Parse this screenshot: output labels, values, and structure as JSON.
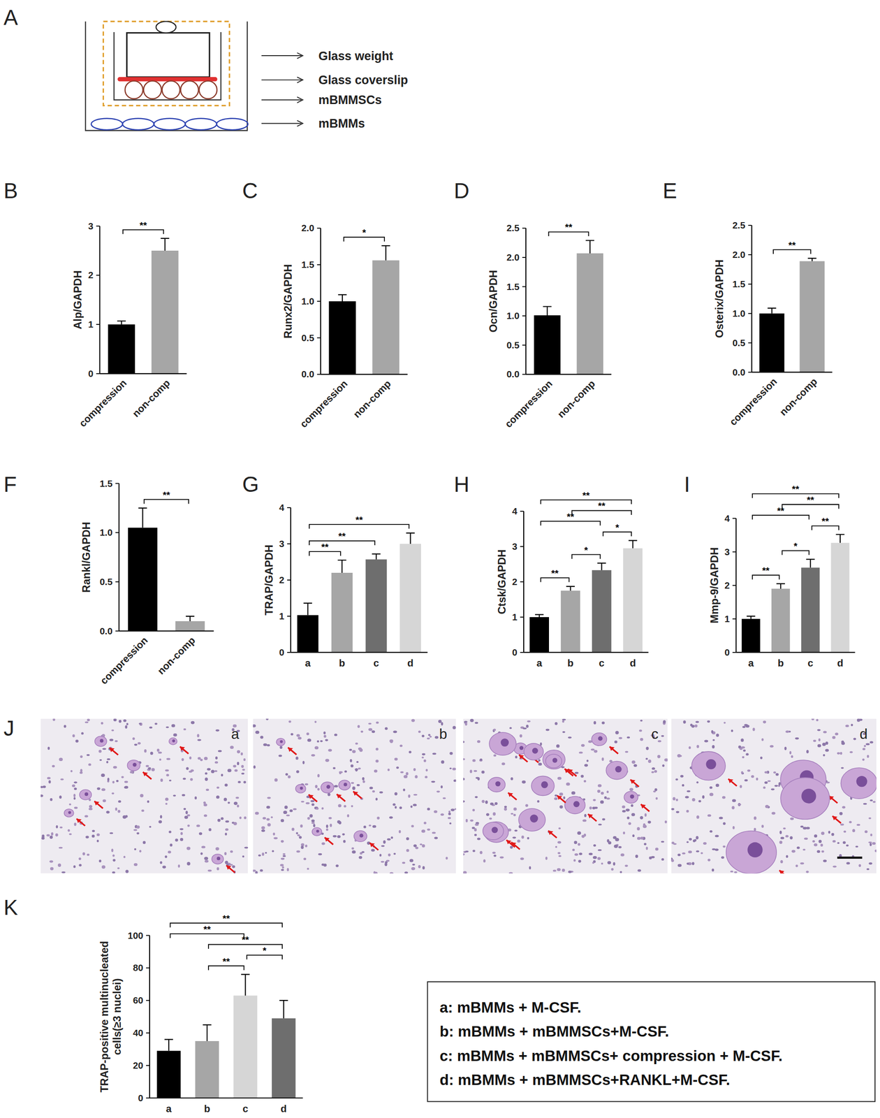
{
  "diagram": {
    "panel_label": "A",
    "labels": [
      "Glass weight",
      "Glass coverslip",
      "mBMMSCs",
      "mBMMs"
    ]
  },
  "chart_data": [
    {
      "type": "bar",
      "panel_label": "B",
      "ylabel": "Alp/GAPDH",
      "categories": [
        "compression",
        "non-comp"
      ],
      "values": [
        1.0,
        2.5
      ],
      "errors": [
        0.07,
        0.25
      ],
      "colors": [
        "#000000",
        "#a6a6a6"
      ],
      "ylim": [
        0,
        3
      ],
      "yticks": [
        0,
        1,
        2,
        3
      ],
      "comparisons": [
        {
          "groups": [
            0,
            1
          ],
          "label": "**"
        }
      ]
    },
    {
      "type": "bar",
      "panel_label": "C",
      "ylabel": "Runx2/GAPDH",
      "categories": [
        "compression",
        "non-comp"
      ],
      "values": [
        1.0,
        1.56
      ],
      "errors": [
        0.09,
        0.2
      ],
      "colors": [
        "#000000",
        "#a6a6a6"
      ],
      "ylim": [
        0,
        2
      ],
      "yticks": [
        {
          "value": 0,
          "label": "0.0"
        },
        0.5,
        {
          "value": 1,
          "label": "1.0"
        },
        1.5,
        {
          "value": 2,
          "label": "2.0"
        }
      ],
      "comparisons": [
        {
          "groups": [
            0,
            1
          ],
          "label": "*"
        }
      ]
    },
    {
      "type": "bar",
      "panel_label": "D",
      "ylabel": "Ocn/GAPDH",
      "categories": [
        "compression",
        "non-comp"
      ],
      "values": [
        1.01,
        2.07
      ],
      "errors": [
        0.15,
        0.22
      ],
      "colors": [
        "#000000",
        "#a6a6a6"
      ],
      "ylim": [
        0,
        2.5
      ],
      "yticks": [
        {
          "value": 0,
          "label": "0.0"
        },
        0.5,
        {
          "value": 1,
          "label": "1.0"
        },
        1.5,
        {
          "value": 2,
          "label": "2.0"
        },
        2.5
      ],
      "comparisons": [
        {
          "groups": [
            0,
            1
          ],
          "label": "**"
        }
      ]
    },
    {
      "type": "bar",
      "panel_label": "E",
      "ylabel": "Osterix/GAPDH",
      "categories": [
        "compression",
        "non-comp"
      ],
      "values": [
        1.0,
        1.89
      ],
      "errors": [
        0.09,
        0.05
      ],
      "colors": [
        "#000000",
        "#a6a6a6"
      ],
      "ylim": [
        0,
        2.5
      ],
      "yticks": [
        {
          "value": 0,
          "label": "0.0"
        },
        0.5,
        {
          "value": 1,
          "label": "1.0"
        },
        1.5,
        {
          "value": 2,
          "label": "2.0"
        },
        2.5
      ],
      "comparisons": [
        {
          "groups": [
            0,
            1
          ],
          "label": "**"
        }
      ]
    },
    {
      "type": "bar",
      "panel_label": "F",
      "ylabel": "Rankl/GAPDH",
      "categories": [
        "compression",
        "non-comp"
      ],
      "values": [
        1.05,
        0.1
      ],
      "errors": [
        0.2,
        0.05
      ],
      "colors": [
        "#000000",
        "#a6a6a6"
      ],
      "ylim": [
        0,
        1.5
      ],
      "yticks": [
        {
          "value": 0,
          "label": "0.0"
        },
        0.5,
        {
          "value": 1,
          "label": "1.0"
        },
        1.5
      ],
      "comparisons": [
        {
          "groups": [
            0,
            1
          ],
          "label": "**"
        }
      ]
    },
    {
      "type": "bar",
      "panel_label": "G",
      "ylabel": "TRAP/GAPDH",
      "categories": [
        "a",
        "b",
        "c",
        "d"
      ],
      "values": [
        1.03,
        2.2,
        2.57,
        3.0
      ],
      "errors": [
        0.33,
        0.35,
        0.15,
        0.3
      ],
      "colors": [
        "#000000",
        "#a6a6a6",
        "#6e6e6e",
        "#d6d6d6"
      ],
      "ylim": [
        0,
        4
      ],
      "yticks": [
        0,
        1,
        2,
        3,
        4
      ],
      "comparisons": [
        {
          "groups": [
            0,
            1
          ],
          "label": "**"
        },
        {
          "groups": [
            0,
            2
          ],
          "label": "**"
        },
        {
          "groups": [
            0,
            3
          ],
          "label": "**"
        }
      ]
    },
    {
      "type": "bar",
      "panel_label": "H",
      "ylabel": "Ctsk/GAPDH",
      "categories": [
        "a",
        "b",
        "c",
        "d"
      ],
      "values": [
        1.0,
        1.75,
        2.33,
        2.95
      ],
      "errors": [
        0.07,
        0.12,
        0.2,
        0.22
      ],
      "colors": [
        "#000000",
        "#a6a6a6",
        "#6e6e6e",
        "#d6d6d6"
      ],
      "ylim": [
        0,
        4
      ],
      "yticks": [
        0,
        1,
        2,
        3,
        4
      ],
      "comparisons": [
        {
          "groups": [
            0,
            1
          ],
          "label": "**"
        },
        {
          "groups": [
            1,
            2
          ],
          "label": "*"
        },
        {
          "groups": [
            2,
            3
          ],
          "label": "*"
        },
        {
          "groups": [
            0,
            2
          ],
          "label": "**"
        },
        {
          "groups": [
            1,
            3
          ],
          "label": "**"
        },
        {
          "groups": [
            0,
            3
          ],
          "label": "**"
        }
      ]
    },
    {
      "type": "bar",
      "panel_label": "I",
      "ylabel": "Mmp-9/GAPDH",
      "categories": [
        "a",
        "b",
        "c",
        "d"
      ],
      "values": [
        1.0,
        1.9,
        2.53,
        3.27
      ],
      "errors": [
        0.08,
        0.15,
        0.25,
        0.25
      ],
      "colors": [
        "#000000",
        "#a6a6a6",
        "#6e6e6e",
        "#d6d6d6"
      ],
      "ylim": [
        0,
        4
      ],
      "yticks": [
        0,
        1,
        2,
        3,
        4
      ],
      "comparisons": [
        {
          "groups": [
            0,
            1
          ],
          "label": "**"
        },
        {
          "groups": [
            1,
            2
          ],
          "label": "*"
        },
        {
          "groups": [
            2,
            3
          ],
          "label": "**"
        },
        {
          "groups": [
            0,
            2
          ],
          "label": "**"
        },
        {
          "groups": [
            1,
            3
          ],
          "label": "**"
        },
        {
          "groups": [
            0,
            3
          ],
          "label": "**"
        }
      ]
    },
    {
      "type": "bar",
      "panel_label": "K",
      "ylabel": "TRAP-positive multinucleated cells(≥3 nuclei)",
      "categories": [
        "a",
        "b",
        "c",
        "d"
      ],
      "values": [
        29,
        35,
        63,
        49
      ],
      "errors": [
        7,
        10,
        13,
        11
      ],
      "colors": [
        "#000000",
        "#a6a6a6",
        "#d6d6d6",
        "#6e6e6e"
      ],
      "ylim": [
        0,
        100
      ],
      "yticks": [
        0,
        20,
        40,
        60,
        80,
        100
      ],
      "comparisons": [
        {
          "groups": [
            1,
            2
          ],
          "label": "**"
        },
        {
          "groups": [
            2,
            3
          ],
          "label": "*"
        },
        {
          "groups": [
            1,
            3
          ],
          "label": "**"
        },
        {
          "groups": [
            0,
            2
          ],
          "label": "**"
        },
        {
          "groups": [
            0,
            3
          ],
          "label": "**"
        }
      ]
    }
  ],
  "micrographs": {
    "panel_label": "J",
    "labels": [
      "a",
      "b",
      "c",
      "d"
    ]
  },
  "legend_box": {
    "lines": [
      "a: mBMMs + M-CSF.",
      "b: mBMMs + mBMMSCs+M-CSF.",
      "c: mBMMs + mBMMSCs+ compression + M-CSF.",
      "d: mBMMs + mBMMSCs+RANKL+M-CSF."
    ]
  }
}
